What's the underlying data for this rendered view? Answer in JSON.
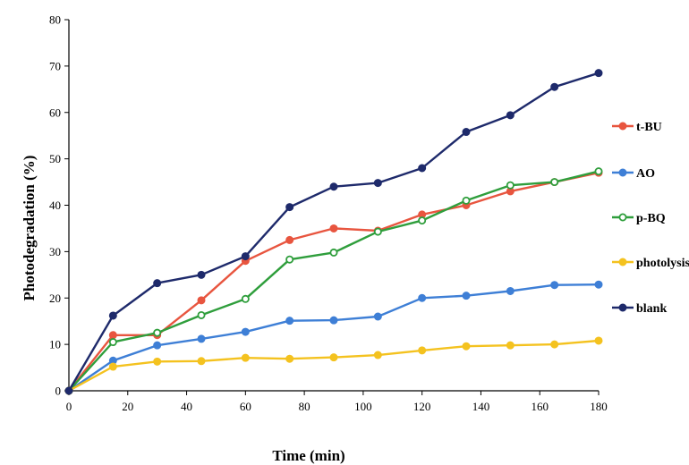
{
  "chart_data": {
    "type": "line",
    "xlabel": "Time (min)",
    "ylabel": "Photodegradation (%)",
    "xlim": [
      0,
      180
    ],
    "ylim": [
      0,
      80
    ],
    "xticks": [
      0,
      20,
      40,
      60,
      80,
      100,
      120,
      140,
      160,
      180
    ],
    "yticks": [
      0,
      10,
      20,
      30,
      40,
      50,
      60,
      70,
      80
    ],
    "grid": false,
    "legend_position": "right",
    "x": [
      0,
      15,
      30,
      45,
      60,
      75,
      90,
      105,
      120,
      135,
      150,
      165,
      180
    ],
    "series": [
      {
        "name": "t-BU",
        "color": "#e8553f",
        "marker_face": "#e8553f",
        "values": [
          0,
          12,
          12,
          19.5,
          28,
          32.5,
          35,
          34.5,
          38,
          40,
          43,
          45,
          47
        ]
      },
      {
        "name": "AO",
        "color": "#3e7fd6",
        "marker_face": "#3e7fd6",
        "values": [
          0,
          6.5,
          9.8,
          11.2,
          12.7,
          15.1,
          15.2,
          16,
          20,
          20.5,
          21.5,
          22.8,
          22.9
        ]
      },
      {
        "name": "p-BQ",
        "color": "#2f9e3c",
        "marker_face": "#ffffff",
        "values": [
          0,
          10.5,
          12.5,
          16.3,
          19.8,
          28.3,
          29.8,
          34.3,
          36.7,
          41,
          44.3,
          45,
          47.3
        ]
      },
      {
        "name": "photolysis",
        "color": "#f4c21f",
        "marker_face": "#f4c21f",
        "values": [
          0,
          5.2,
          6.3,
          6.4,
          7.1,
          6.9,
          7.2,
          7.7,
          8.7,
          9.6,
          9.8,
          10,
          10.8
        ]
      },
      {
        "name": "blank",
        "color": "#1e2a6b",
        "marker_face": "#1e2a6b",
        "values": [
          0,
          16.2,
          23.2,
          25,
          29,
          39.6,
          44,
          44.8,
          48,
          55.8,
          59.4,
          65.5,
          68.5
        ]
      }
    ]
  }
}
